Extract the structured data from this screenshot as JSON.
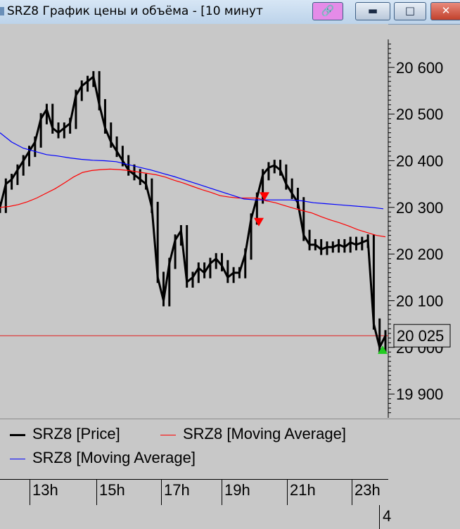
{
  "window": {
    "title": "SRZ8 График цены и объёма - [10 минут",
    "buttons": [
      "link",
      "minimize",
      "maximize",
      "close"
    ]
  },
  "colors": {
    "background": "#c8c8c8",
    "price": "#000000",
    "ma_red": "#ff0000",
    "ma_blue": "#0000ff",
    "ref_line": "#e02020",
    "marker_green": "#22cc22",
    "marker_red": "#ff0000"
  },
  "chart_data": {
    "type": "line",
    "title": "",
    "ylim": [
      19855,
      20660
    ],
    "y_ticks": [
      20600,
      20500,
      20400,
      20300,
      20200,
      20100,
      20000,
      19900
    ],
    "y_tick_labels": [
      "20 600",
      "20 500",
      "20 400",
      "20 300",
      "20 200",
      "20 100",
      "20 000",
      "19 900"
    ],
    "x_tick_labels": [
      "13h",
      "15h",
      "17h",
      "19h",
      "21h",
      "23h"
    ],
    "current_price_label": "20 025",
    "reference_line": 20025,
    "grid": false,
    "series": [
      {
        "name": "SRZ8 [Price]",
        "color": "#000000",
        "values": [
          20300,
          20350,
          20360,
          20380,
          20400,
          20420,
          20440,
          20490,
          20510,
          20470,
          20460,
          20470,
          20480,
          20540,
          20560,
          20570,
          20580,
          20520,
          20470,
          20440,
          20420,
          20400,
          20380,
          20370,
          20360,
          20350,
          20300,
          20150,
          20100,
          20180,
          20230,
          20250,
          20140,
          20150,
          20170,
          20160,
          20180,
          20190,
          20175,
          20150,
          20160,
          20160,
          20200,
          20275,
          20320,
          20370,
          20385,
          20390,
          20380,
          20350,
          20330,
          20310,
          20240,
          20220,
          20220,
          20210,
          20215,
          20215,
          20220,
          20215,
          20225,
          20220,
          20225,
          20230,
          20050,
          20000,
          20025
        ]
      },
      {
        "name": "SRZ8 [Moving Average]",
        "color": "#ff0000",
        "values": [
          20300,
          20302,
          20306,
          20312,
          20320,
          20330,
          20340,
          20352,
          20365,
          20375,
          20379,
          20381,
          20382,
          20381,
          20379,
          20376,
          20373,
          20370,
          20365,
          20358,
          20352,
          20345,
          20338,
          20332,
          20325,
          20322,
          20320,
          20320,
          20320,
          20314,
          20310,
          20304,
          20298,
          20293,
          20288,
          20280,
          20273,
          20267,
          20260,
          20252,
          20246,
          20240,
          20237
        ]
      },
      {
        "name": "SRZ8 [Moving Average]",
        "color": "#0000ff",
        "values": [
          20460,
          20440,
          20427,
          20420,
          20413,
          20410,
          20406,
          20403,
          20401,
          20400,
          20398,
          20392,
          20386,
          20380,
          20373,
          20366,
          20358,
          20350,
          20342,
          20334,
          20326,
          20318,
          20316,
          20316,
          20316,
          20316,
          20314,
          20310,
          20308,
          20306,
          20304,
          20302,
          20300,
          20297
        ]
      }
    ],
    "markers": [
      {
        "type": "sell",
        "color": "#ff0000",
        "value": 20325
      },
      {
        "type": "sell",
        "color": "#ff0000",
        "value": 20270
      },
      {
        "type": "buy",
        "color": "#22cc22",
        "value": 19995
      }
    ]
  },
  "legend": {
    "items": [
      "SRZ8 [Price]",
      "SRZ8 [Moving Average]",
      "SRZ8 [Moving Average]"
    ]
  },
  "status": {
    "bottom_right": "4"
  }
}
